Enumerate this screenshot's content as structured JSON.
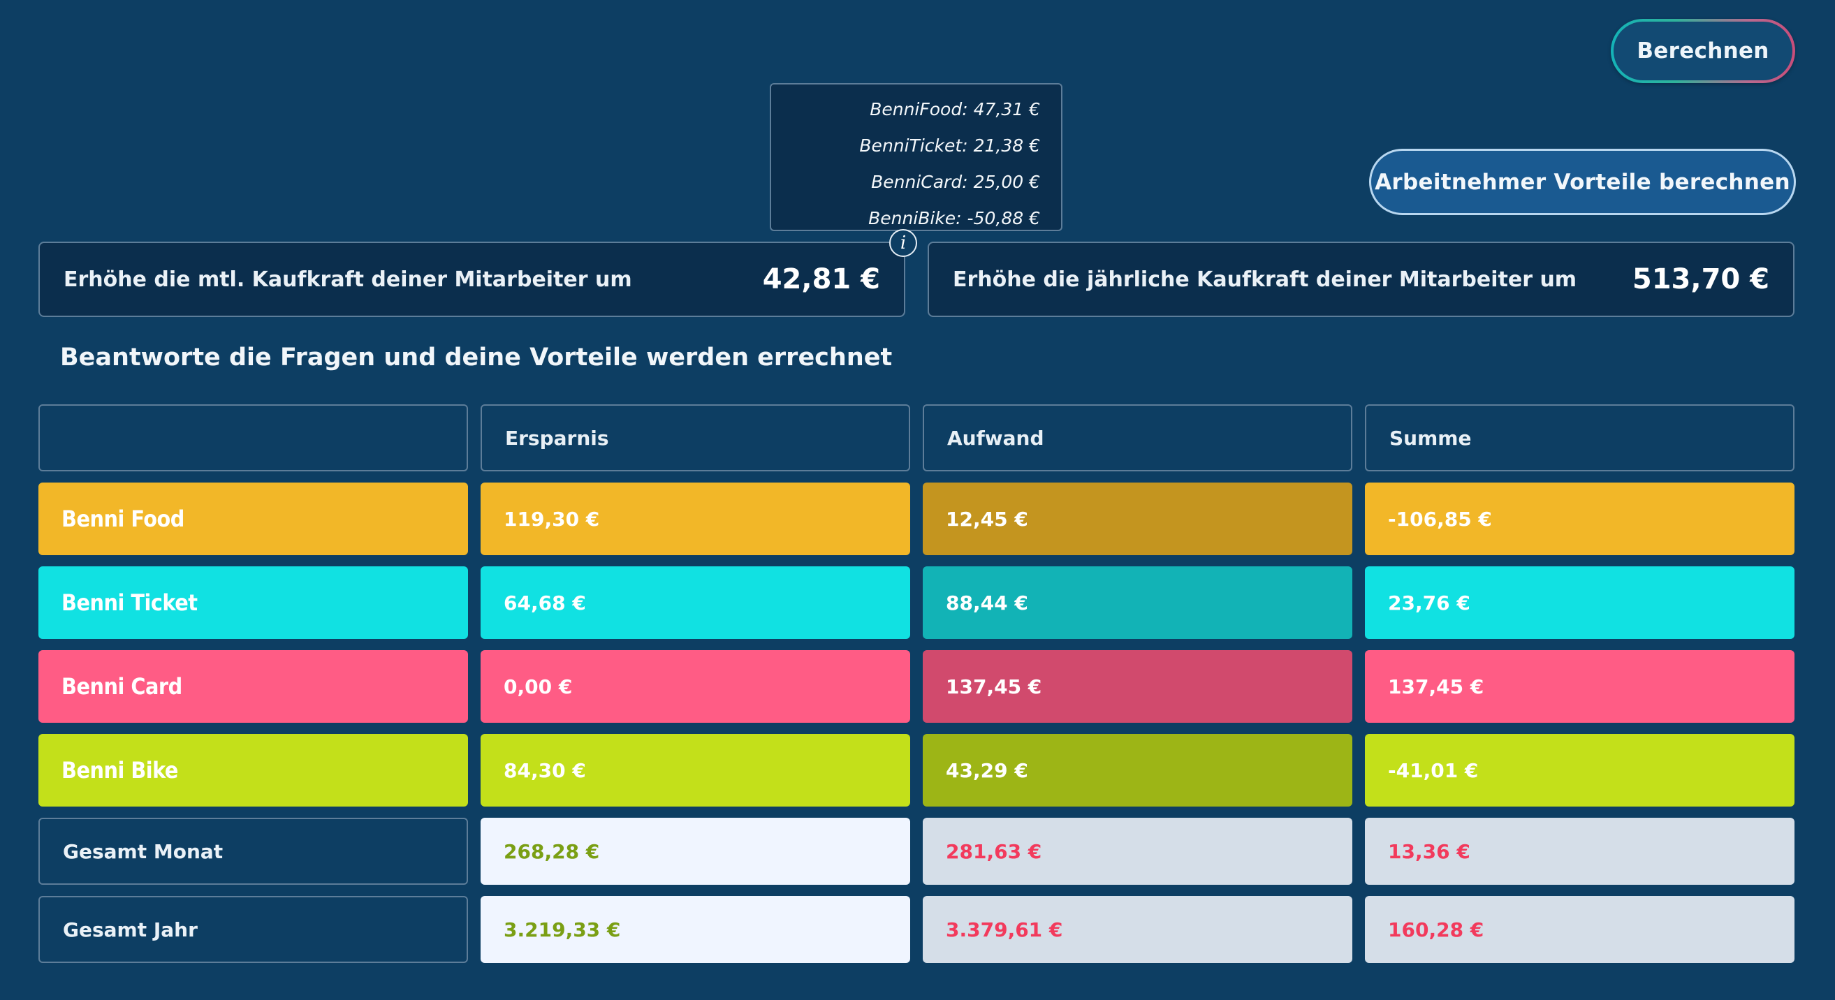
{
  "buttons": {
    "calculate": "Berechnen",
    "employee_benefits": "Arbeitnehmer Vorteile berechnen"
  },
  "tooltip": {
    "lines": [
      "BenniFood: 47,31 €",
      "BenniTicket: 21,38 €",
      "BenniCard: 25,00 €",
      "BenniBike: -50,88 €"
    ],
    "icon": "info-icon"
  },
  "kaufkraft": {
    "monthly": {
      "label": "Erhöhe die mtl. Kaufkraft deiner Mitarbeiter um",
      "value": "42,81 €"
    },
    "yearly": {
      "label": "Erhöhe die jährliche Kaufkraft deiner Mitarbeiter um",
      "value": "513,70 €"
    }
  },
  "subtitle": "Beantworte die Fragen und deine Vorteile werden errechnet",
  "table": {
    "headers": [
      "",
      "Ersparnis",
      "Aufwand",
      "Summe"
    ],
    "rows": [
      {
        "name": "Benni Food",
        "ersparnis": "119,30 €",
        "aufwand": "12,45 €",
        "summe": "-106,85 €",
        "color": "#f2b728",
        "dark": "#c4951f"
      },
      {
        "name": "Benni Ticket",
        "ersparnis": "64,68 €",
        "aufwand": "88,44 €",
        "summe": "23,76 €",
        "color": "#11e1e2",
        "dark": "#12b3b6"
      },
      {
        "name": "Benni Card",
        "ersparnis": "0,00 €",
        "aufwand": "137,45 €",
        "summe": "137,45 €",
        "color": "#ff5c85",
        "dark": "#d14a6d"
      },
      {
        "name": "Benni Bike",
        "ersparnis": "84,30 €",
        "aufwand": "43,29 €",
        "summe": "-41,01 €",
        "color": "#c3e01a",
        "dark": "#9db516"
      }
    ],
    "totals": [
      {
        "label": "Gesamt Monat",
        "ersparnis": "268,28 €",
        "aufwand": "281,63 €",
        "summe": "13,36 €"
      },
      {
        "label": "Gesamt Jahr",
        "ersparnis": "3.219,33 €",
        "aufwand": "3.379,61 €",
        "summe": "160,28 €"
      }
    ],
    "colors": {
      "green_text": "#7a9f14",
      "red_text": "#f23a5c",
      "light_bg": "#f0f5ff",
      "grey_bg": "#d5dee8"
    }
  }
}
